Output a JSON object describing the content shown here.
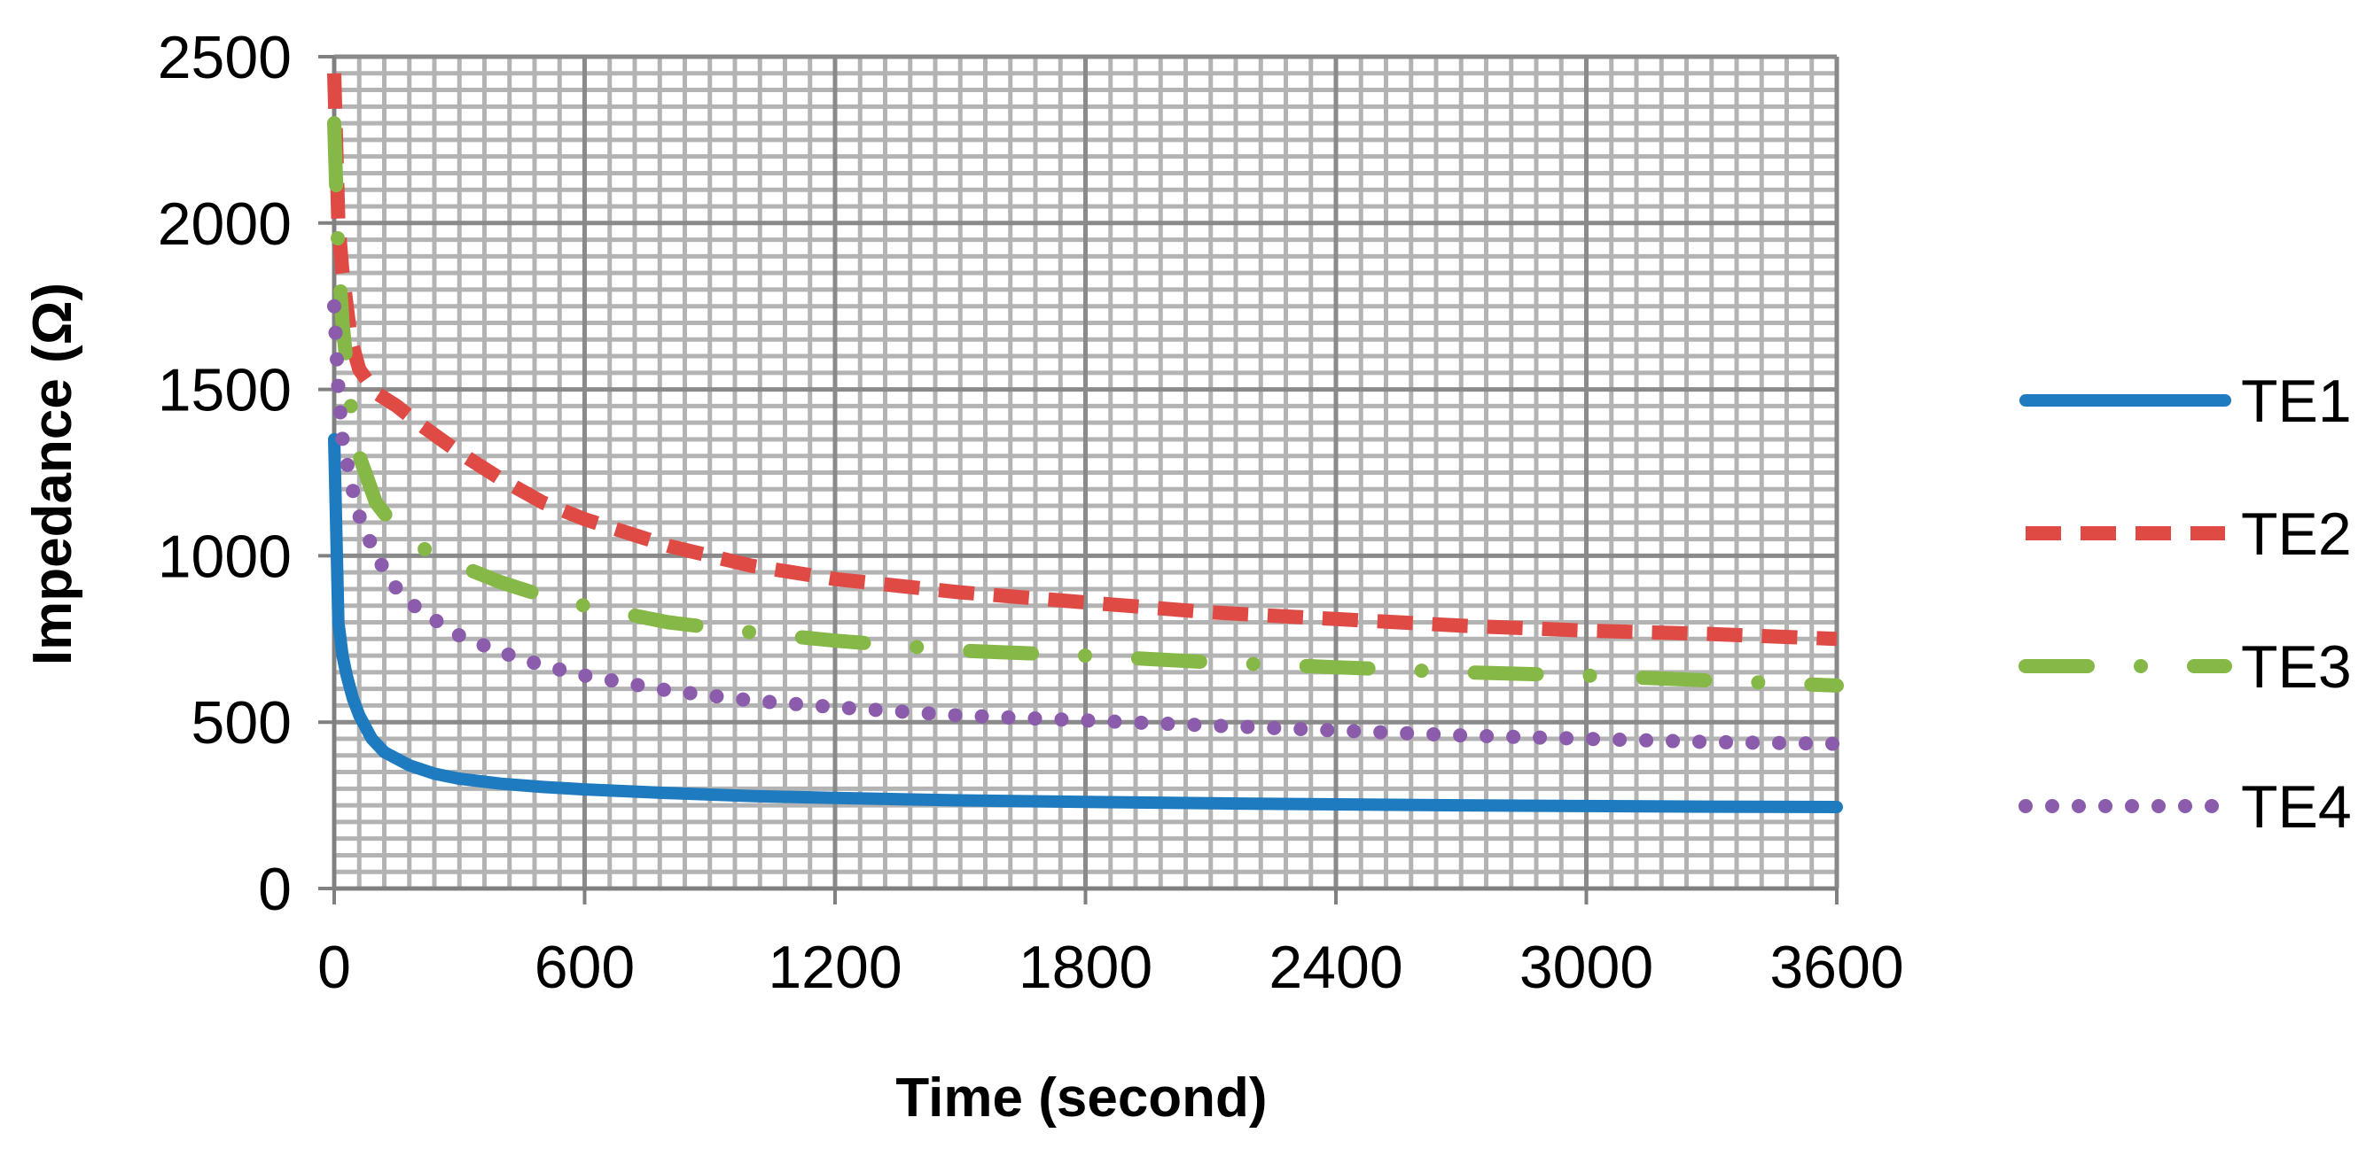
{
  "chart_data": {
    "type": "line",
    "title": "",
    "xlabel": "Time (second)",
    "ylabel": "Impedance (Ω)",
    "xlim": [
      0,
      3600
    ],
    "ylim": [
      0,
      2500
    ],
    "x_major_ticks": [
      0,
      600,
      1200,
      1800,
      2400,
      3000,
      3600
    ],
    "y_major_ticks": [
      0,
      500,
      1000,
      1500,
      2000,
      2500
    ],
    "x_tick_labels": [
      "0",
      "600",
      "1200",
      "1800",
      "2400",
      "3000",
      "3600"
    ],
    "y_tick_labels": [
      "0",
      "500",
      "1000",
      "1500",
      "2000",
      "2500"
    ],
    "x_minor_step": 60,
    "y_minor_step": 50,
    "grid": true,
    "legend_position": "right",
    "series": [
      {
        "name": "TE1",
        "color": "#1f7bbf",
        "style": "solid",
        "x": [
          0,
          10,
          20,
          30,
          45,
          60,
          90,
          120,
          180,
          240,
          300,
          400,
          500,
          600,
          800,
          1000,
          1200,
          1500,
          1800,
          2100,
          2400,
          2700,
          3000,
          3300,
          3600
        ],
        "y": [
          1350,
          800,
          700,
          640,
          570,
          520,
          450,
          410,
          370,
          345,
          330,
          315,
          305,
          298,
          287,
          278,
          272,
          265,
          260,
          256,
          253,
          250,
          248,
          246,
          245
        ]
      },
      {
        "name": "TE2",
        "color": "#e04a45",
        "style": "dashed",
        "x": [
          0,
          10,
          20,
          40,
          60,
          100,
          150,
          200,
          300,
          400,
          500,
          600,
          800,
          1000,
          1200,
          1500,
          1800,
          2100,
          2400,
          2700,
          3000,
          3300,
          3600
        ],
        "y": [
          2450,
          2000,
          1850,
          1650,
          1560,
          1490,
          1450,
          1400,
          1310,
          1230,
          1160,
          1110,
          1030,
          970,
          930,
          890,
          860,
          830,
          810,
          790,
          775,
          765,
          750
        ]
      },
      {
        "name": "TE3",
        "color": "#86b847",
        "style": "dash-dot",
        "x": [
          0,
          10,
          20,
          40,
          60,
          80,
          100,
          150,
          200,
          300,
          400,
          500,
          600,
          800,
          1000,
          1200,
          1500,
          1800,
          2100,
          2400,
          2700,
          3000,
          3300,
          3600
        ],
        "y": [
          2300,
          1900,
          1700,
          1450,
          1300,
          1230,
          1160,
          1080,
          1030,
          970,
          920,
          880,
          850,
          800,
          770,
          745,
          715,
          700,
          680,
          665,
          650,
          640,
          625,
          610
        ]
      },
      {
        "name": "TE4",
        "color": "#8a5cab",
        "style": "dotted",
        "x": [
          0,
          10,
          20,
          40,
          60,
          80,
          100,
          150,
          200,
          300,
          400,
          500,
          600,
          800,
          1000,
          1200,
          1500,
          1800,
          2100,
          2400,
          2700,
          3000,
          3300,
          3600
        ],
        "y": [
          1750,
          1500,
          1350,
          1220,
          1120,
          1060,
          1000,
          900,
          840,
          760,
          710,
          670,
          640,
          595,
          565,
          545,
          520,
          505,
          490,
          475,
          460,
          450,
          440,
          435
        ]
      }
    ]
  }
}
